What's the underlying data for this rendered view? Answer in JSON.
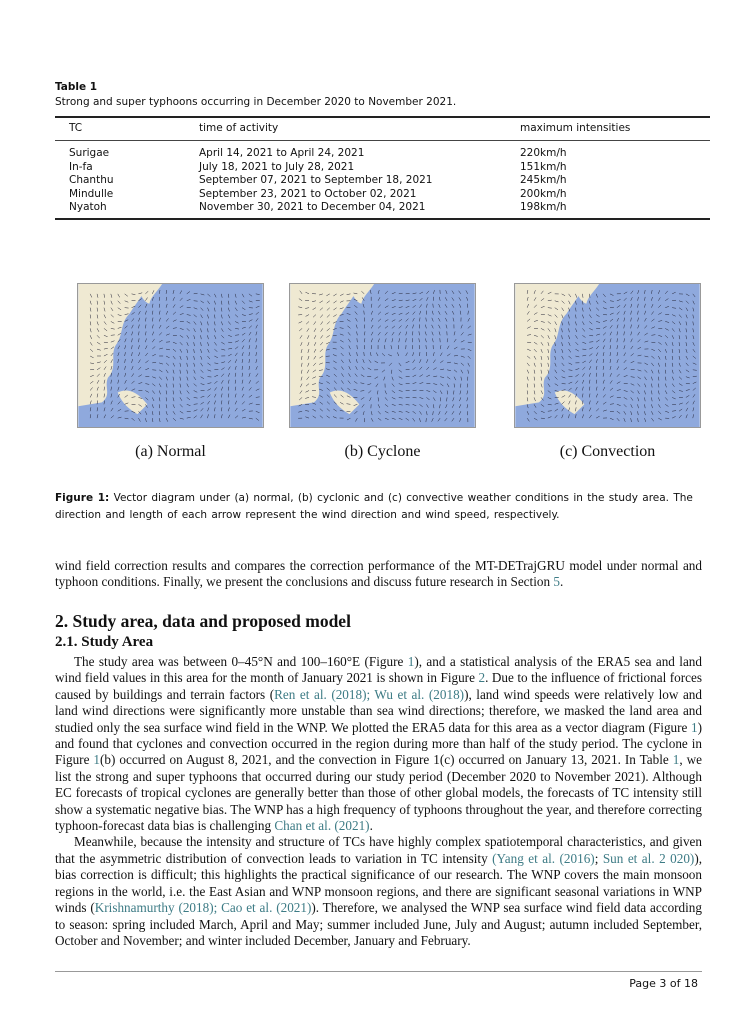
{
  "table": {
    "title": "Table 1",
    "caption": "Strong and super typhoons occurring in December 2020 to November 2021.",
    "headers": [
      "TC",
      "time of activity",
      "maximum intensities"
    ],
    "rows": [
      [
        "Surigae",
        "April 14, 2021 to April 24, 2021",
        "220km/h"
      ],
      [
        "In-fa",
        "July 18, 2021 to July 28, 2021",
        "151km/h"
      ],
      [
        "Chanthu",
        "September 07, 2021 to September 18, 2021",
        "245km/h"
      ],
      [
        "Mindulle",
        "September 23, 2021 to October 02, 2021",
        "200km/h"
      ],
      [
        "Nyatoh",
        "November 30, 2021 to December 04, 2021",
        "198km/h"
      ]
    ]
  },
  "figure": {
    "panels": [
      {
        "label": "(a) Normal"
      },
      {
        "label": "(b) Cyclone"
      },
      {
        "label": "(c) Convection"
      }
    ],
    "colors": {
      "land": "#efe9d2",
      "sea": "#8fa9dd"
    },
    "caption_label": "Figure 1:",
    "caption_text": " Vector diagram under (a) normal, (b) cyclonic and (c) convective weather conditions in the study area. The direction and length of each arrow represent the wind direction and wind speed, respectively."
  },
  "intro": [
    {
      "t": "wind field correction results and compares the correction performance of the MT-DETrajGRU model under normal and typhoon conditions. Finally, we present the conclusions and discuss future research in Section "
    },
    {
      "t": "5",
      "l": 1
    },
    {
      "t": "."
    }
  ],
  "section_heading": "2.  Study area, data and proposed model",
  "subsection_heading": "2.1. Study Area",
  "paragraphs": [
    [
      {
        "t": "The study area was between 0–45°N and 100–160°E (Figure "
      },
      {
        "t": "1",
        "l": 1
      },
      {
        "t": "), and a statistical analysis of the ERA5 sea and land wind field values in this area for the month of January 2021 is shown in Figure "
      },
      {
        "t": "2",
        "l": 1
      },
      {
        "t": ". Due to the influence of frictional forces caused by buildings and terrain factors ("
      },
      {
        "t": "Ren et al. (2018); Wu et al. (2018)",
        "l": 1
      },
      {
        "t": "), land wind speeds were relatively low and land wind directions were significantly more unstable than sea wind directions; therefore, we masked the land area and studied only the sea surface wind field in the WNP. We plotted the ERA5 data for this area as a vector diagram (Figure "
      },
      {
        "t": "1",
        "l": 1
      },
      {
        "t": ") and found that cyclones and convection occurred in the region during more than half of the study period. The cyclone in Figure "
      },
      {
        "t": "1",
        "l": 1
      },
      {
        "t": "(b) occurred on August 8, 2021, and the convection in Figure 1(c) occurred on January 13, 2021. In Table "
      },
      {
        "t": "1",
        "l": 1
      },
      {
        "t": ", we list the strong and super typhoons that occurred during our study period (December 2020 to November 2021). Although EC forecasts of tropical cyclones are generally better than those of other global models, the forecasts of TC intensity still show a systematic negative bias. The WNP has a high frequency of typhoons throughout the year, and therefore correcting typhoon-forecast data bias is challenging "
      },
      {
        "t": "Chan et al. (2021)",
        "l": 1
      },
      {
        "t": "."
      }
    ],
    [
      {
        "t": "Meanwhile, because the intensity and structure of TCs have highly complex spatiotemporal characteristics, and given that the asymmetric distribution of convection leads to variation in TC intensity "
      },
      {
        "t": "(Yang et al. (2016)",
        "l": 1
      },
      {
        "t": "; "
      },
      {
        "t": "Sun et al. 2 020)",
        "l": 1
      },
      {
        "t": "), bias correction is difficult; this highlights the practical significance of our research. The WNP covers the main monsoon regions in the world, i.e. the East Asian and WNP monsoon regions, and there are significant seasonal variations in WNP winds ("
      },
      {
        "t": "Krishnamurthy (2018); Cao et al. (2021)",
        "l": 1
      },
      {
        "t": "). Therefore, we analysed the WNP sea surface wind field data according to season: spring included March, April and May; summer included June, July and August; autumn included September, October and November; and winter included December, January and February."
      }
    ]
  ],
  "footer": {
    "page": "Page 3 of 18"
  }
}
